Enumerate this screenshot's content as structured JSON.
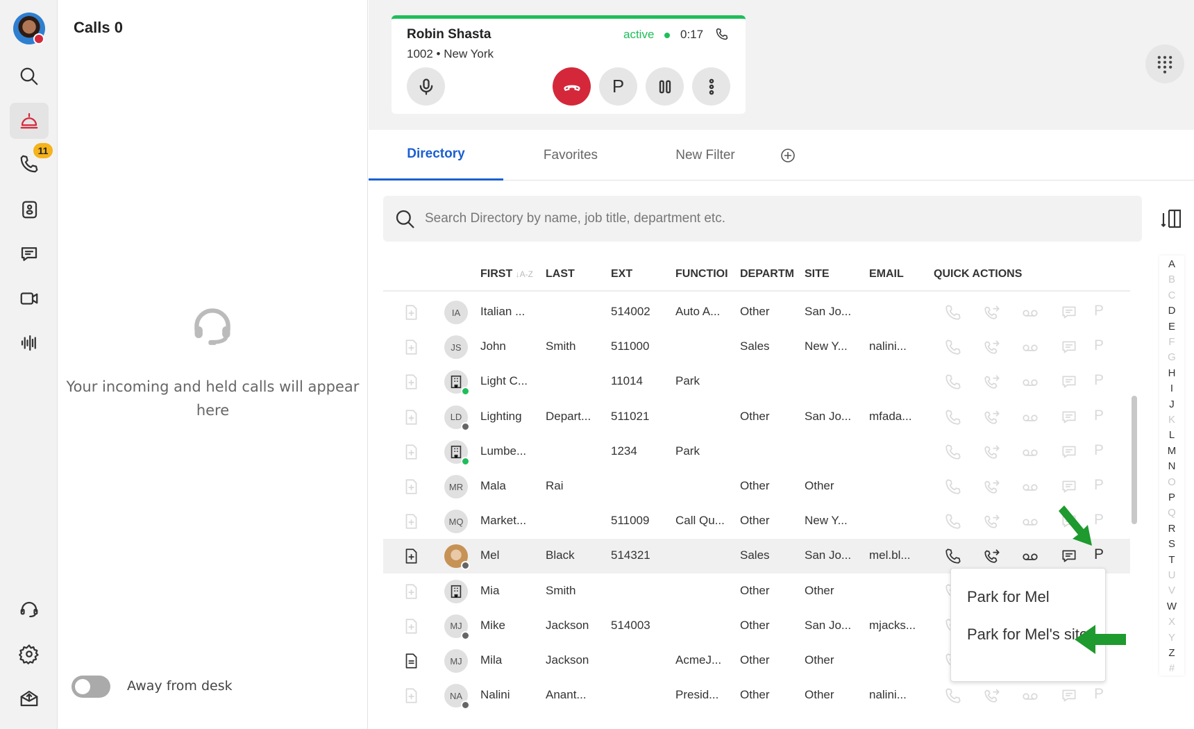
{
  "sidebar": {
    "badge": "11",
    "items": [
      "search",
      "front-desk",
      "calls",
      "contacts",
      "chat",
      "video",
      "voicemail",
      "headset",
      "settings",
      "app-update"
    ]
  },
  "calls_panel": {
    "title": "Calls 0",
    "empty_message": "Your incoming and held calls will appear here",
    "away_label": "Away from desk",
    "away_on": false
  },
  "active_call": {
    "name": "Robin Shasta",
    "detail": "1002 • New York",
    "status": "active",
    "timer": "0:17",
    "status_color": "#1fbe5a",
    "hangup_color": "#d4283a",
    "park_label": "P"
  },
  "tabs": [
    {
      "label": "Directory",
      "active": true
    },
    {
      "label": "Favorites"
    },
    {
      "label": "New Filter"
    }
  ],
  "search": {
    "placeholder": "Search Directory by name, job title, department etc.",
    "value": ""
  },
  "table": {
    "headers": {
      "first": "FIRST",
      "sort": "↓A-Z",
      "last": "LAST",
      "ext": "EXT",
      "function": "FUNCTIOI",
      "department": "DEPARTM",
      "site": "SITE",
      "email": "EMAIL",
      "quick_actions": "QUICK ACTIONS"
    },
    "rows": [
      {
        "initials": "IA",
        "first": "Italian ...",
        "last": "",
        "ext": "514002",
        "function": "Auto A...",
        "department": "Other",
        "site": "San Jo...",
        "email": "",
        "status": "",
        "avatar": "initials"
      },
      {
        "initials": "JS",
        "first": "John",
        "last": "Smith",
        "ext": "511000",
        "function": "",
        "department": "Sales",
        "site": "New Y...",
        "email": "nalini...",
        "status": "",
        "avatar": "initials"
      },
      {
        "initials": "",
        "first": "Light C...",
        "last": "",
        "ext": "11014",
        "function": "Park",
        "department": "",
        "site": "",
        "email": "",
        "status": "available",
        "avatar": "building"
      },
      {
        "initials": "LD",
        "first": "Lighting",
        "last": "Depart...",
        "ext": "511021",
        "function": "",
        "department": "Other",
        "site": "San Jo...",
        "email": "mfada...",
        "status": "offline",
        "avatar": "initials"
      },
      {
        "initials": "",
        "first": "Lumbe...",
        "last": "",
        "ext": "1234",
        "function": "Park",
        "department": "",
        "site": "",
        "email": "",
        "status": "available",
        "avatar": "building"
      },
      {
        "initials": "MR",
        "first": "Mala",
        "last": "Rai",
        "ext": "",
        "function": "",
        "department": "Other",
        "site": "Other",
        "email": "",
        "status": "",
        "avatar": "initials"
      },
      {
        "initials": "MQ",
        "first": "Market...",
        "last": "",
        "ext": "511009",
        "function": "Call Qu...",
        "department": "Other",
        "site": "New Y...",
        "email": "",
        "status": "",
        "avatar": "initials"
      },
      {
        "initials": "",
        "first": "Mel",
        "last": "Black",
        "ext": "514321",
        "function": "",
        "department": "Sales",
        "site": "San Jo...",
        "email": "mel.bl...",
        "status": "offline",
        "avatar": "photo",
        "highlighted": true
      },
      {
        "initials": "",
        "first": "Mia",
        "last": "Smith",
        "ext": "",
        "function": "",
        "department": "Other",
        "site": "Other",
        "email": "",
        "status": "",
        "avatar": "contact-card"
      },
      {
        "initials": "MJ",
        "first": "Mike",
        "last": "Jackson",
        "ext": "514003",
        "function": "",
        "department": "Other",
        "site": "San Jo...",
        "email": "mjacks...",
        "status": "offline",
        "avatar": "initials"
      },
      {
        "initials": "MJ",
        "first": "Mila",
        "last": "Jackson",
        "ext": "",
        "function": "AcmeJ...",
        "department": "Other",
        "site": "Other",
        "email": "",
        "status": "",
        "avatar": "initials",
        "note": true
      },
      {
        "initials": "NA",
        "first": "Nalini",
        "last": "Anant...",
        "ext": "",
        "function": "Presid...",
        "department": "Other",
        "site": "Other",
        "email": "nalini...",
        "status": "offline",
        "avatar": "initials"
      }
    ]
  },
  "alphabet": [
    {
      "l": "A",
      "on": true
    },
    {
      "l": "B"
    },
    {
      "l": "C"
    },
    {
      "l": "D",
      "on": true
    },
    {
      "l": "E",
      "on": true
    },
    {
      "l": "F"
    },
    {
      "l": "G"
    },
    {
      "l": "H",
      "on": true
    },
    {
      "l": "I",
      "on": true
    },
    {
      "l": "J",
      "on": true
    },
    {
      "l": "K"
    },
    {
      "l": "L",
      "on": true
    },
    {
      "l": "M",
      "on": true
    },
    {
      "l": "N",
      "on": true
    },
    {
      "l": "O"
    },
    {
      "l": "P",
      "on": true
    },
    {
      "l": "Q"
    },
    {
      "l": "R",
      "on": true
    },
    {
      "l": "S",
      "on": true
    },
    {
      "l": "T",
      "on": true
    },
    {
      "l": "U"
    },
    {
      "l": "V"
    },
    {
      "l": "W",
      "on": true
    },
    {
      "l": "X"
    },
    {
      "l": "Y"
    },
    {
      "l": "Z",
      "on": true
    },
    {
      "l": "#"
    }
  ],
  "park_menu": {
    "items": [
      "Park for Mel",
      "Park for Mel's site"
    ]
  },
  "annotation_color": "#1e9a2e"
}
